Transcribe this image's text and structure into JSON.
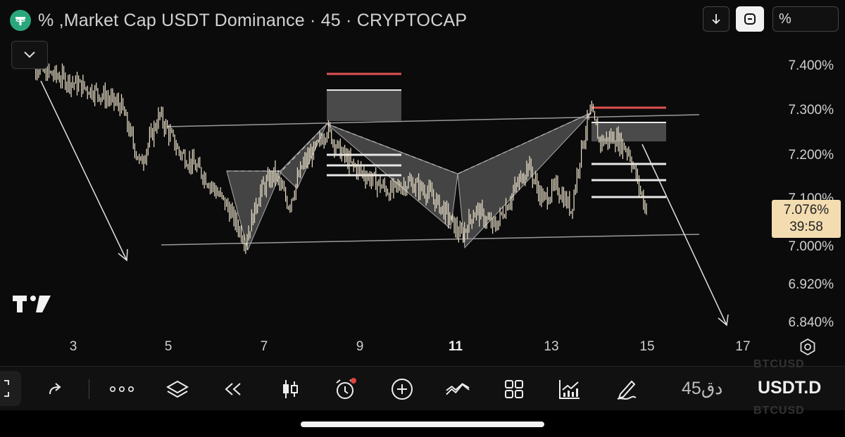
{
  "header": {
    "title": "% ,Market Cap USDT Dominance · 45 · CRYPTOCAP",
    "logo_icon": "tether-icon",
    "buttons": {
      "download_icon": "arrow-down-icon",
      "fullscreen_icon": "frame-icon",
      "scale_label": "%"
    }
  },
  "price_tag": {
    "price": "7.076%",
    "countdown": "39:58"
  },
  "y_axis": [
    "7.400%",
    "7.300%",
    "7.200%",
    "7.100%",
    "7.000%",
    "6.920%",
    "6.840%"
  ],
  "x_axis": [
    {
      "label": "3",
      "bold": false
    },
    {
      "label": "5",
      "bold": false
    },
    {
      "label": "7",
      "bold": false
    },
    {
      "label": "9",
      "bold": false
    },
    {
      "label": "11",
      "bold": true
    },
    {
      "label": "13",
      "bold": false
    },
    {
      "label": "15",
      "bold": false
    },
    {
      "label": "17",
      "bold": false
    }
  ],
  "colors": {
    "candles": "#ede3cc",
    "accent_red": "#e05252",
    "zone": "#4a4a4a",
    "price_tag": "#f3dcb0",
    "logo": "#2aa67d",
    "alert_dot": "#e0443e"
  },
  "toolbar": {
    "interval": "45دق",
    "symbol": "USDT.D",
    "ghost_top": "BTCUSD",
    "ghost_bottom": "BTCUSD",
    "icons": [
      "redo-icon",
      "more-icon",
      "layers-icon",
      "replay-icon",
      "candles-icon",
      "alert-icon",
      "add-icon",
      "indicators-icon",
      "layout-icon",
      "trading-icon",
      "draw-icon"
    ]
  },
  "chart_data": {
    "type": "bar",
    "symbol": "USDT.D",
    "interval": "45",
    "x_ticks": [
      "3",
      "5",
      "7",
      "9",
      "11",
      "13",
      "15",
      "17"
    ],
    "y_ticks": [
      "7.400%",
      "7.300%",
      "7.200%",
      "7.100%",
      "7.000%",
      "6.920%",
      "6.840%"
    ],
    "last_price": "7.076%",
    "path_days": [
      2.0,
      2.3,
      2.8,
      3.5,
      4.0,
      4.4,
      4.8,
      5.2,
      5.7,
      6.2,
      6.6,
      6.9,
      7.2,
      7.5,
      7.8,
      8.1,
      8.3,
      8.5,
      8.8,
      9.2,
      9.6,
      10.0,
      10.4,
      10.8,
      11.1,
      11.4,
      11.8,
      12.2,
      12.5,
      12.8,
      13.1,
      13.4,
      13.6,
      13.8,
      14.0,
      14.3,
      14.6,
      14.9,
      15.0
    ],
    "path_prices": [
      7.43,
      7.39,
      7.37,
      7.34,
      7.31,
      7.18,
      7.29,
      7.21,
      7.16,
      7.09,
      7.01,
      7.12,
      7.16,
      7.09,
      7.18,
      7.22,
      7.26,
      7.22,
      7.18,
      7.15,
      7.12,
      7.14,
      7.12,
      7.07,
      7.02,
      7.08,
      7.04,
      7.12,
      7.18,
      7.1,
      7.13,
      7.08,
      7.21,
      7.3,
      7.23,
      7.24,
      7.21,
      7.1,
      7.076
    ]
  }
}
